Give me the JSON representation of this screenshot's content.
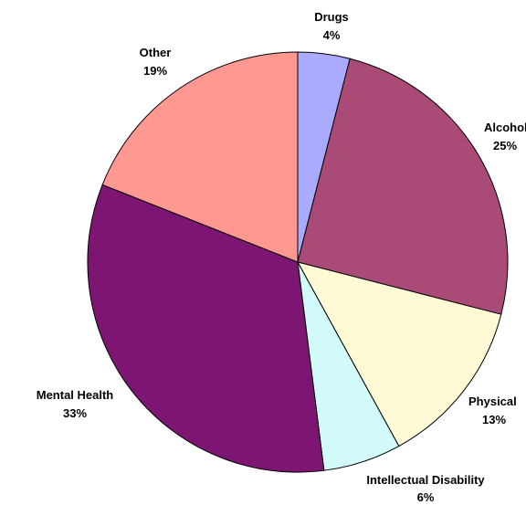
{
  "chart_data": {
    "type": "pie",
    "slices": [
      {
        "label": "Drugs",
        "value": 4,
        "value_label": "4%",
        "color": "#aaaaff"
      },
      {
        "label": "Alcohol",
        "value": 25,
        "value_label": "25%",
        "color": "#aa4a77"
      },
      {
        "label": "Physical",
        "value": 13,
        "value_label": "13%",
        "color": "#fffad6"
      },
      {
        "label": "Intellectual Disability",
        "value": 6,
        "value_label": "6%",
        "color": "#d3fafa"
      },
      {
        "label": "Mental Health",
        "value": 33,
        "value_label": "33%",
        "color": "#7d1673"
      },
      {
        "label": "Other",
        "value": 19,
        "value_label": "19%",
        "color": "#ff9890"
      }
    ],
    "legend": "none",
    "labels": "outside"
  }
}
